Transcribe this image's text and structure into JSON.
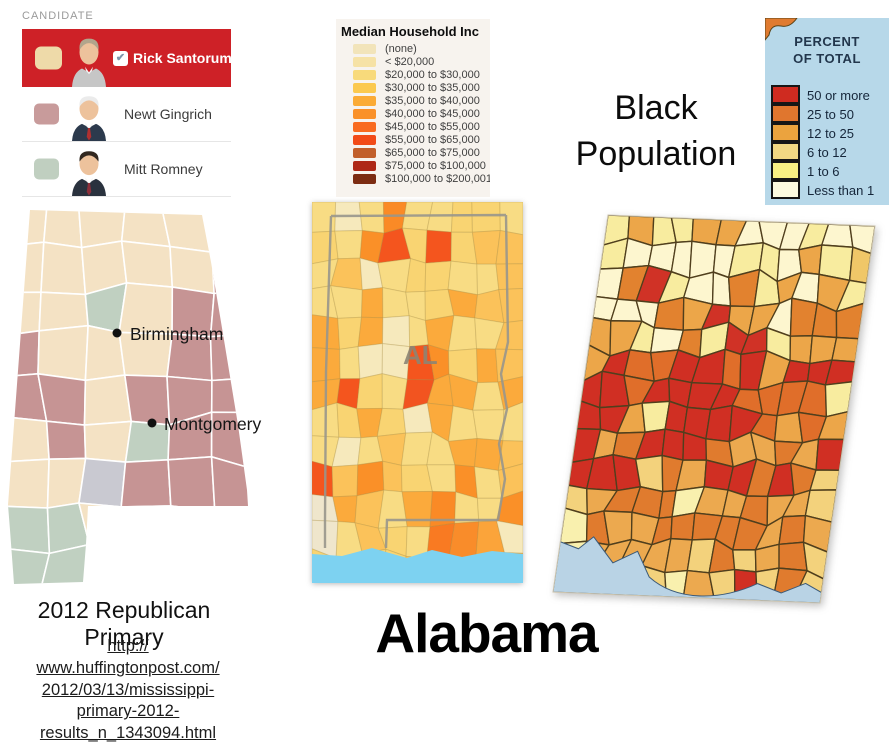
{
  "candidate_legend": {
    "header": "CANDIDATE",
    "check_color": "#7e95ab",
    "items": [
      {
        "name": "Rick Santorum",
        "selected": true,
        "row_bg": "#ce2127",
        "swatch": "#eedaa9",
        "hair": "#b2a58c",
        "suit": "#c6c6c6",
        "tie": ""
      },
      {
        "name": "Newt Gingrich",
        "selected": false,
        "row_bg": "#ffffff",
        "swatch": "#c89b9b",
        "hair": "#ebebeb",
        "suit": "#2c3a4d",
        "tie": "#b03030"
      },
      {
        "name": "Mitt Romney",
        "selected": false,
        "row_bg": "#ffffff",
        "swatch": "#c0cfc0",
        "hair": "#31271f",
        "suit": "#2a323e",
        "tie": "#8c2f3a"
      }
    ]
  },
  "income_legend": {
    "title": "Median Household Inc",
    "items": [
      {
        "label": "(none)",
        "color": "#f2e4ba"
      },
      {
        "label": "< $20,000",
        "color": "#f6e2a6"
      },
      {
        "label": "$20,000 to $30,000",
        "color": "#f8da7b"
      },
      {
        "label": "$30,000 to $35,000",
        "color": "#fbc94e"
      },
      {
        "label": "$35,000 to $40,000",
        "color": "#fbab36"
      },
      {
        "label": "$40,000 to $45,000",
        "color": "#fa9129"
      },
      {
        "label": "$45,000 to $55,000",
        "color": "#f96b20"
      },
      {
        "label": "$55,000 to $65,000",
        "color": "#f24b18"
      },
      {
        "label": "$65,000 to $75,000",
        "color": "#c25f2b"
      },
      {
        "label": "$75,000 to $100,000",
        "color": "#ae2817"
      },
      {
        "label": "$100,000 to $200,001",
        "color": "#7c2c12"
      }
    ]
  },
  "percent_legend": {
    "title_line1": "PERCENT",
    "title_line2": "OF TOTAL",
    "items": [
      {
        "label": "50 or more",
        "color": "#cf2b20"
      },
      {
        "label": "25 to 50",
        "color": "#e0762e"
      },
      {
        "label": "12 to 25",
        "color": "#eba33e"
      },
      {
        "label": "6 to 12",
        "color": "#f2d883"
      },
      {
        "label": "1 to 6",
        "color": "#f8f083"
      },
      {
        "label": "Less than 1",
        "color": "#fdfbe0"
      }
    ]
  },
  "black_population_title": {
    "line1": "Black",
    "line2": "Population"
  },
  "left_map": {
    "cities": [
      {
        "name": "Birmingham"
      },
      {
        "name": "Montgomery"
      }
    ],
    "colors": {
      "S": "#f4e2c4",
      "G": "#c69494",
      "R": "#c0d0c1",
      "X": "#c9c9d1"
    },
    "fill_matrix": [
      "SSSSSS",
      "SSSSSG",
      "SSRSGG",
      "GSSSGG",
      "GGSGGG",
      "SGSRGG",
      "SSXGGG",
      "RRSGGS",
      "RRSSSS"
    ]
  },
  "middle_map": {
    "state_label": "AL",
    "water_color": "#7dd2f1",
    "palette": {
      "#f8dc84": 34,
      "#f9d472": 16,
      "#fbc25a": 16,
      "#fbaa3c": 14,
      "#fa9028": 10,
      "#f6e9bc": 6,
      "#f4551e": 4
    },
    "accents": [
      {
        "r": 0,
        "c": 3,
        "color": "#fa8a26"
      },
      {
        "r": 1,
        "c": 3,
        "color": "#f4551e"
      },
      {
        "r": 5,
        "c": 4,
        "color": "#f4551e"
      },
      {
        "r": 6,
        "c": 4,
        "color": "#f25420"
      },
      {
        "r": 10,
        "c": 0,
        "color": "#efe6cc"
      },
      {
        "r": 11,
        "c": 0,
        "color": "#efe6cc"
      },
      {
        "r": 10,
        "c": 5,
        "color": "#fa8a26"
      },
      {
        "r": 11,
        "c": 5,
        "color": "#f97a22"
      },
      {
        "r": 12,
        "c": 5,
        "color": "#fa8a26"
      },
      {
        "r": 11,
        "c": 6,
        "color": "#f98c2a"
      },
      {
        "r": 11,
        "c": 7,
        "color": "#fba43a"
      }
    ]
  },
  "right_map": {
    "water_color": "#b9d3e5",
    "bands": [
      {
        "rows": [
          0,
          1
        ],
        "colors": {
          "#fdf6cf": 45,
          "#f8ec9f": 30,
          "#f0c768": 15,
          "#eca649": 10
        }
      },
      {
        "rows": [
          2,
          3
        ],
        "colors": {
          "#fdf6cf": 30,
          "#f8ec9f": 25,
          "#eca649": 25,
          "#e2822f": 12,
          "#d03226": 8
        }
      },
      {
        "rows": [
          4
        ],
        "colors": {
          "#eca649": 30,
          "#f8ec9f": 20,
          "#e2822f": 25,
          "#d03226": 20,
          "#fdf6cf": 5
        }
      },
      {
        "rows": [
          5,
          6,
          7
        ],
        "colors": {
          "#d02f23": 42,
          "#e06e2a": 30,
          "#eca649": 18,
          "#f8ec9f": 10
        }
      },
      {
        "rows": [
          8,
          9
        ],
        "colors": {
          "#e07b2e": 35,
          "#eca94f": 30,
          "#d02f23": 20,
          "#f3d27c": 15
        }
      },
      {
        "rows": [
          10,
          11
        ],
        "colors": {
          "#eca94f": 35,
          "#f3d27c": 25,
          "#e07b2e": 25,
          "#f9f0ae": 15
        }
      },
      {
        "rows": [
          12,
          13
        ],
        "colors": {
          "#eca94f": 30,
          "#f3d27c": 25,
          "#f9f0ae": 20,
          "#e07b2e": 15,
          "#d02f23": 10
        }
      }
    ]
  },
  "captions": {
    "primary_title": "2012 Republican Primary",
    "state_title": "Alabama",
    "link_lines": [
      "http://",
      "www.huffingtonpost.com/",
      "2012/03/13/mississippi-",
      "primary-2012-",
      "results_n_1343094.html"
    ]
  }
}
